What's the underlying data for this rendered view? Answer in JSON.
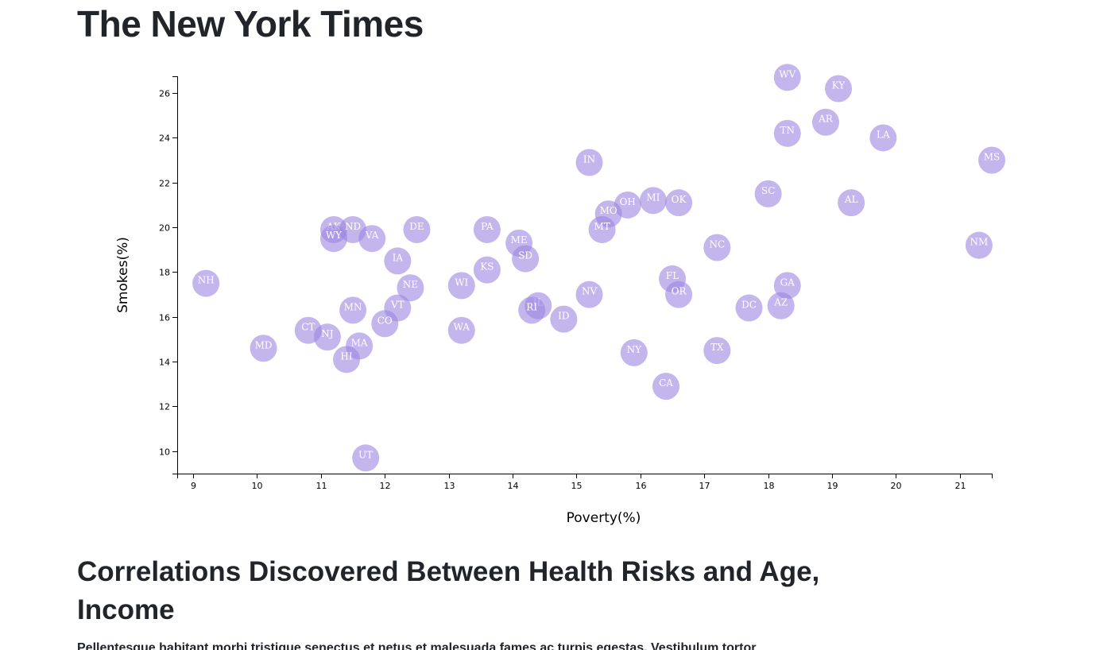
{
  "header": {
    "site_title": "The New York Times"
  },
  "article": {
    "heading": "Correlations Discovered Between Health Risks and Age, Income",
    "text": "Pellentesque habitant morbi tristique senectus et netus et malesuada fames ac turpis egestas. Vestibulum tortor"
  },
  "chart_data": {
    "type": "scatter",
    "xlabel": "Poverty(%)",
    "ylabel": "Smokes(%)",
    "xlim": [
      8.75,
      21.5
    ],
    "ylim": [
      9,
      26.75
    ],
    "xticks": [
      9,
      10,
      11,
      12,
      13,
      14,
      15,
      16,
      17,
      18,
      19,
      20,
      21
    ],
    "yticks": [
      10,
      12,
      14,
      16,
      18,
      20,
      22,
      24,
      26
    ],
    "grid": false,
    "marker_color": "#9b86e1",
    "label_color": "#ffffff",
    "points": [
      {
        "label": "WV",
        "x": 18.3,
        "y": 26.7
      },
      {
        "label": "KY",
        "x": 19.1,
        "y": 26.2
      },
      {
        "label": "AR",
        "x": 18.9,
        "y": 24.7
      },
      {
        "label": "TN",
        "x": 18.3,
        "y": 24.2
      },
      {
        "label": "LA",
        "x": 19.8,
        "y": 24.0
      },
      {
        "label": "MS",
        "x": 21.5,
        "y": 23.0
      },
      {
        "label": "IN",
        "x": 15.2,
        "y": 22.9
      },
      {
        "label": "SC",
        "x": 18.0,
        "y": 21.5
      },
      {
        "label": "MI",
        "x": 16.2,
        "y": 21.2
      },
      {
        "label": "OK",
        "x": 16.6,
        "y": 21.1
      },
      {
        "label": "AL",
        "x": 19.3,
        "y": 21.1
      },
      {
        "label": "OH",
        "x": 15.8,
        "y": 21.0
      },
      {
        "label": "MO",
        "x": 15.5,
        "y": 20.6
      },
      {
        "label": "AK",
        "x": 11.2,
        "y": 19.9
      },
      {
        "label": "ND",
        "x": 11.5,
        "y": 19.9
      },
      {
        "label": "DE",
        "x": 12.5,
        "y": 19.9
      },
      {
        "label": "PA",
        "x": 13.6,
        "y": 19.9
      },
      {
        "label": "MT",
        "x": 15.4,
        "y": 19.9
      },
      {
        "label": "WY",
        "x": 11.2,
        "y": 19.5
      },
      {
        "label": "VA",
        "x": 11.8,
        "y": 19.5
      },
      {
        "label": "ME",
        "x": 14.1,
        "y": 19.3
      },
      {
        "label": "NM",
        "x": 21.3,
        "y": 19.2
      },
      {
        "label": "NC",
        "x": 17.2,
        "y": 19.1
      },
      {
        "label": "SD",
        "x": 14.2,
        "y": 18.6
      },
      {
        "label": "IA",
        "x": 12.2,
        "y": 18.5
      },
      {
        "label": "KS",
        "x": 13.6,
        "y": 18.1
      },
      {
        "label": "FL",
        "x": 16.5,
        "y": 17.7
      },
      {
        "label": "NH",
        "x": 9.2,
        "y": 17.5
      },
      {
        "label": "GA",
        "x": 18.3,
        "y": 17.4
      },
      {
        "label": "WI",
        "x": 13.2,
        "y": 17.4
      },
      {
        "label": "NE",
        "x": 12.4,
        "y": 17.3
      },
      {
        "label": "NV",
        "x": 15.2,
        "y": 17.0
      },
      {
        "label": "OR",
        "x": 16.6,
        "y": 17.0
      },
      {
        "label": "IL",
        "x": 14.4,
        "y": 16.5
      },
      {
        "label": "VT",
        "x": 12.2,
        "y": 16.4
      },
      {
        "label": "DC",
        "x": 17.7,
        "y": 16.4
      },
      {
        "label": "AZ",
        "x": 18.2,
        "y": 16.5
      },
      {
        "label": "RI",
        "x": 14.3,
        "y": 16.3
      },
      {
        "label": "MN",
        "x": 11.5,
        "y": 16.3
      },
      {
        "label": "ID",
        "x": 14.8,
        "y": 15.9
      },
      {
        "label": "CO",
        "x": 12.0,
        "y": 15.7
      },
      {
        "label": "CT",
        "x": 10.8,
        "y": 15.4
      },
      {
        "label": "WA",
        "x": 13.2,
        "y": 15.4
      },
      {
        "label": "NJ",
        "x": 11.1,
        "y": 15.1
      },
      {
        "label": "MA",
        "x": 11.6,
        "y": 14.7
      },
      {
        "label": "MD",
        "x": 10.1,
        "y": 14.6
      },
      {
        "label": "TX",
        "x": 17.2,
        "y": 14.5
      },
      {
        "label": "NY",
        "x": 15.9,
        "y": 14.4
      },
      {
        "label": "HI",
        "x": 11.4,
        "y": 14.1
      },
      {
        "label": "CA",
        "x": 16.4,
        "y": 12.9
      },
      {
        "label": "UT",
        "x": 11.7,
        "y": 9.7
      }
    ]
  }
}
